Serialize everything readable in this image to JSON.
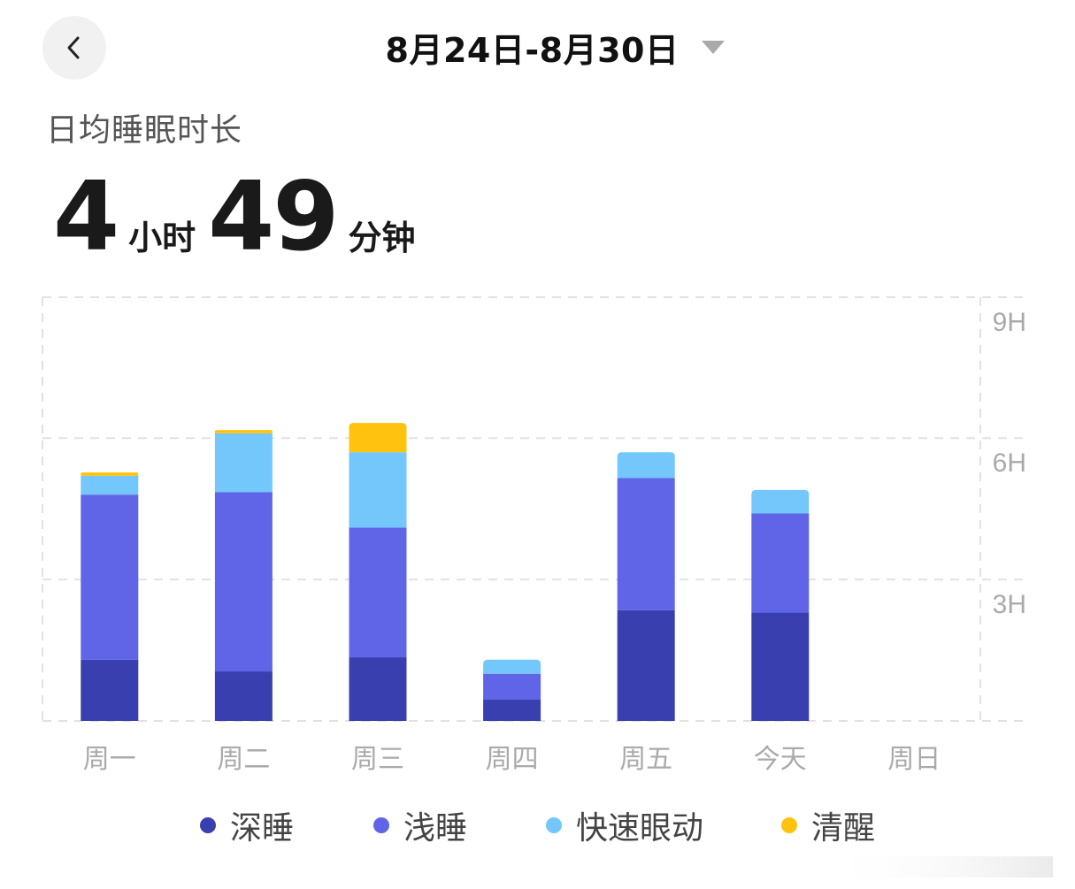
{
  "header": {
    "date_range": "8月24日-8月30日"
  },
  "summary": {
    "title": "日均睡眠时长",
    "hours": "4",
    "hours_unit": "小时",
    "minutes": "49",
    "minutes_unit": "分钟"
  },
  "colors": {
    "deep": "#3a3fb0",
    "light": "#6065e8",
    "rem": "#74c7fb",
    "awake": "#ffc20f",
    "grid": "#e2e2e2",
    "axis_text": "#aaaaaa"
  },
  "chart_data": {
    "type": "bar",
    "stacked": true,
    "categories": [
      "周一",
      "周二",
      "周三",
      "周四",
      "周五",
      "今天",
      "周日"
    ],
    "series": [
      {
        "name": "深睡",
        "color": "#3a3fb0",
        "values": [
          1.3,
          1.05,
          1.35,
          0.45,
          2.35,
          2.3,
          0
        ]
      },
      {
        "name": "浅睡",
        "color": "#6065e8",
        "values": [
          3.5,
          3.8,
          2.75,
          0.55,
          2.8,
          2.1,
          0
        ]
      },
      {
        "name": "快速眼动",
        "color": "#74c7fb",
        "values": [
          0.4,
          1.25,
          1.6,
          0.3,
          0.55,
          0.5,
          0
        ]
      },
      {
        "name": "清醒",
        "color": "#ffc20f",
        "values": [
          0.07,
          0.07,
          0.62,
          0,
          0,
          0,
          0
        ]
      }
    ],
    "y_ticks": [
      "3H",
      "6H",
      "9H"
    ],
    "y_tick_values": [
      3,
      6,
      9
    ],
    "ylim": [
      0,
      9
    ],
    "grid": true,
    "legend_position": "bottom"
  }
}
